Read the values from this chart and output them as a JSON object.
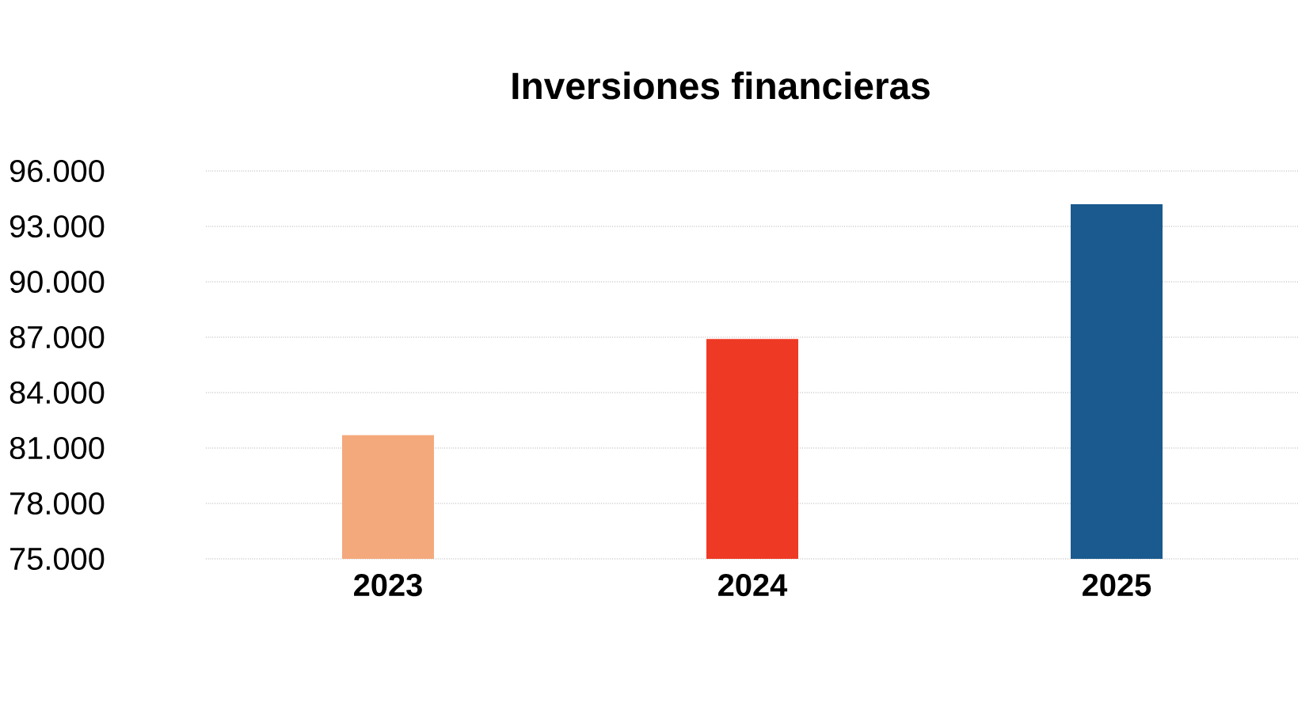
{
  "chart_data": {
    "type": "bar",
    "title": "Inversiones financieras",
    "categories": [
      "2023",
      "2024",
      "2025"
    ],
    "values": [
      81700,
      86900,
      94200
    ],
    "colors": [
      "#f4a97c",
      "#ee3a24",
      "#1a5a8e"
    ],
    "ylim": [
      75000,
      96000
    ],
    "yticks": [
      {
        "value": 75000,
        "label": "75.000"
      },
      {
        "value": 78000,
        "label": "78.000"
      },
      {
        "value": 81000,
        "label": "81.000"
      },
      {
        "value": 84000,
        "label": "84.000"
      },
      {
        "value": 87000,
        "label": "87.000"
      },
      {
        "value": 90000,
        "label": "90.000"
      },
      {
        "value": 93000,
        "label": "93.000"
      },
      {
        "value": 96000,
        "label": "96.000"
      }
    ],
    "grid": "y"
  }
}
